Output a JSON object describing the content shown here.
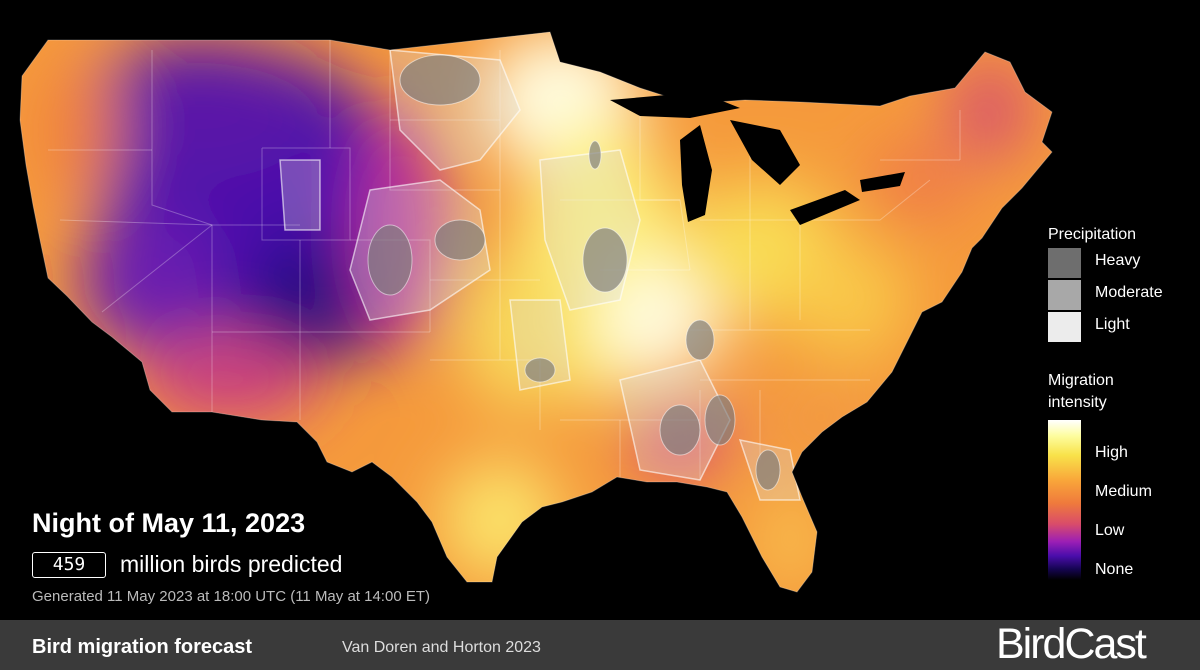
{
  "map": {
    "headline": "Night of May 11, 2023",
    "birds_count": "459",
    "birds_label": "million birds predicted",
    "generated_text": "Generated 11 May 2023 at 18:00 UTC (11 May at 14:00 ET)"
  },
  "precipitation_legend": {
    "title": "Precipitation",
    "items": [
      {
        "label": "Heavy",
        "color": "#6e6e6e"
      },
      {
        "label": "Moderate",
        "color": "#a8a8a8"
      },
      {
        "label": "Light",
        "color": "#ececec"
      }
    ]
  },
  "intensity_legend": {
    "title_line1": "Migration",
    "title_line2": "intensity",
    "labels": [
      "High",
      "Medium",
      "Low",
      "None"
    ]
  },
  "footer": {
    "title": "Bird migration forecast",
    "credit": "Van Doren and Horton 2023",
    "logo": "BirdCast"
  },
  "colors": {
    "background": "#000000",
    "footer_bar": "#3a3a3a",
    "high": "#fffde0",
    "medium": "#f4963a",
    "low": "#4a0dab"
  }
}
